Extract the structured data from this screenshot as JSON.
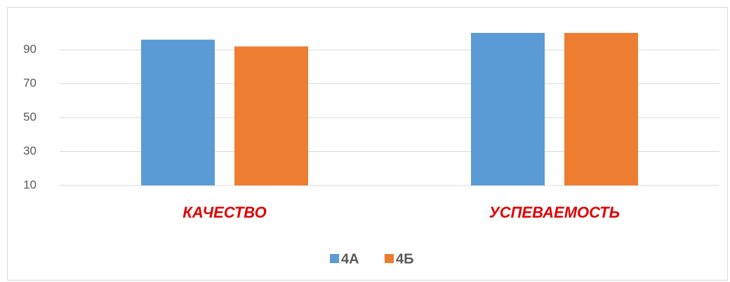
{
  "chart_data": {
    "type": "bar",
    "categories": [
      "КАЧЕСТВО",
      "УСПЕВАЕМОСТЬ"
    ],
    "series": [
      {
        "name": "4А",
        "color": "#5b9bd5",
        "values": [
          96,
          100
        ]
      },
      {
        "name": "4Б",
        "color": "#ed7d31",
        "values": [
          92,
          100
        ]
      }
    ],
    "ylim": [
      10,
      100
    ],
    "yticks": [
      10,
      30,
      50,
      70,
      90
    ],
    "grid": true,
    "legend": "bottom"
  }
}
